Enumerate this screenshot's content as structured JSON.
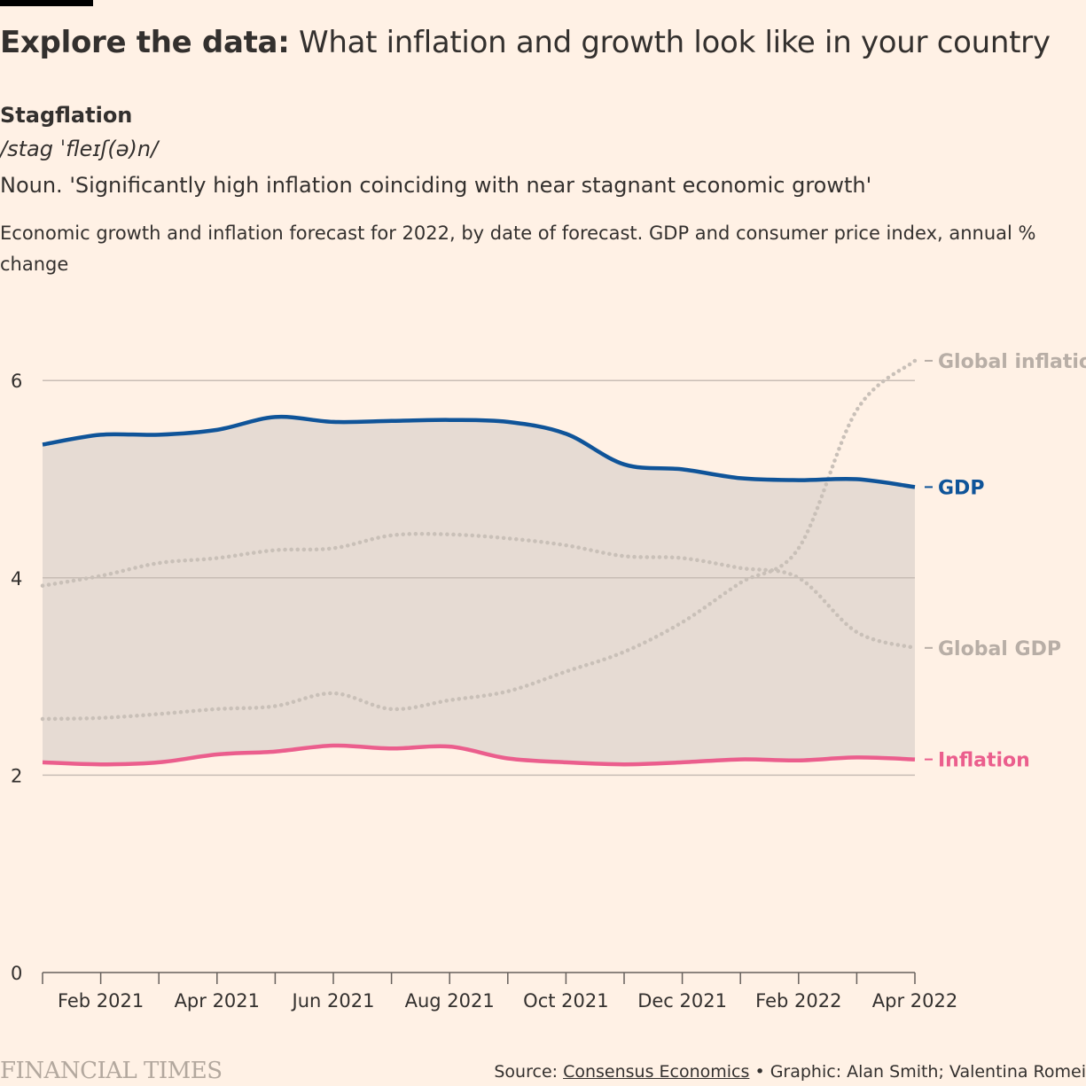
{
  "header": {
    "headline_lead": "Explore the data:",
    "headline_rest": " What inflation and growth look like in your country",
    "term": "Stagflation",
    "pronunciation": "/stag ˈfleɪʃ(ə)n/",
    "definition": "Noun. 'Significantly high inflation coinciding with near stagnant economic growth'"
  },
  "footer": {
    "logo": "FINANCIAL TIMES",
    "source_prefix": "Source: ",
    "source_link": "Consensus Economics",
    "credits": " • Graphic: Alan Smith; Valentina Romei"
  },
  "colors": {
    "background": "#fff1e5",
    "gdp": "#0f5499",
    "inflation": "#eb5e8d",
    "global": "#c9c0b8",
    "band": "#e6dbd3",
    "gridline": "#c8bdb5",
    "axis": "#66605c"
  },
  "chart_data": {
    "type": "line",
    "title": "Economic growth and inflation forecast for 2022, by date of forecast. GDP and consumer price index, annual % change",
    "ylim": [
      0,
      6.25
    ],
    "yticks": [
      0,
      2,
      4,
      6
    ],
    "xlim": [
      "2021-01",
      "2022-04"
    ],
    "xticks": [
      "Feb 2021",
      "Apr 2021",
      "Jun 2021",
      "Aug 2021",
      "Oct 2021",
      "Dec 2021",
      "Feb 2022",
      "Apr 2022"
    ],
    "x": [
      "2021-01",
      "2021-02",
      "2021-03",
      "2021-04",
      "2021-05",
      "2021-06",
      "2021-07",
      "2021-08",
      "2021-09",
      "2021-10",
      "2021-11",
      "2021-12",
      "2022-01",
      "2022-02",
      "2022-03",
      "2022-04"
    ],
    "series": [
      {
        "name": "GDP",
        "style": "solid",
        "values": [
          5.35,
          5.45,
          5.45,
          5.5,
          5.63,
          5.58,
          5.59,
          5.6,
          5.58,
          5.46,
          5.15,
          5.1,
          5.01,
          4.99,
          5.0,
          4.92
        ]
      },
      {
        "name": "Inflation",
        "style": "solid",
        "values": [
          2.13,
          2.11,
          2.13,
          2.21,
          2.24,
          2.3,
          2.27,
          2.29,
          2.17,
          2.13,
          2.11,
          2.13,
          2.16,
          2.15,
          2.18,
          2.16
        ]
      },
      {
        "name": "Global GDP",
        "style": "dotted",
        "values": [
          3.92,
          4.02,
          4.15,
          4.2,
          4.28,
          4.3,
          4.43,
          4.44,
          4.4,
          4.33,
          4.22,
          4.2,
          4.1,
          4.0,
          3.45,
          3.29
        ]
      },
      {
        "name": "Global inflation",
        "style": "dotted",
        "values": [
          2.57,
          2.58,
          2.62,
          2.67,
          2.7,
          2.83,
          2.67,
          2.76,
          2.85,
          3.05,
          3.25,
          3.55,
          3.95,
          4.3,
          5.7,
          6.2
        ]
      }
    ],
    "band_between": [
      "Inflation",
      "GDP"
    ],
    "grid": true,
    "legend": "direct labels at line ends"
  }
}
